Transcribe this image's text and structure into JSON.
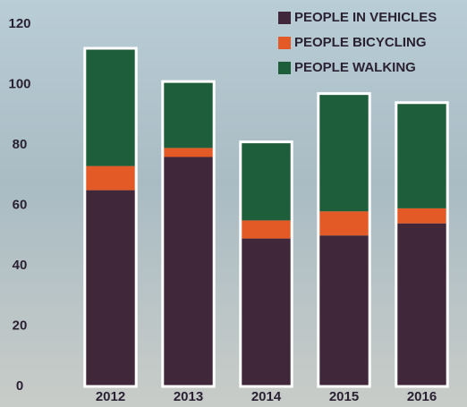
{
  "chart_data": {
    "type": "stacked-bar",
    "categories": [
      "2012",
      "2013",
      "2014",
      "2015",
      "2016"
    ],
    "series": [
      {
        "name": "PEOPLE IN VEHICLES",
        "color": "#40283a",
        "values": [
          65,
          76,
          49,
          50,
          54
        ]
      },
      {
        "name": "PEOPLE BICYCLING",
        "color": "#e35a26",
        "values": [
          8,
          3,
          6,
          8,
          5
        ]
      },
      {
        "name": "PEOPLE WALKING",
        "color": "#1f5e3a",
        "values": [
          39,
          22,
          26,
          39,
          35
        ]
      }
    ],
    "ylim": [
      0,
      120
    ],
    "yticks": [
      0,
      20,
      40,
      60,
      80,
      100,
      120
    ],
    "grid": false,
    "legend": "top-right"
  }
}
